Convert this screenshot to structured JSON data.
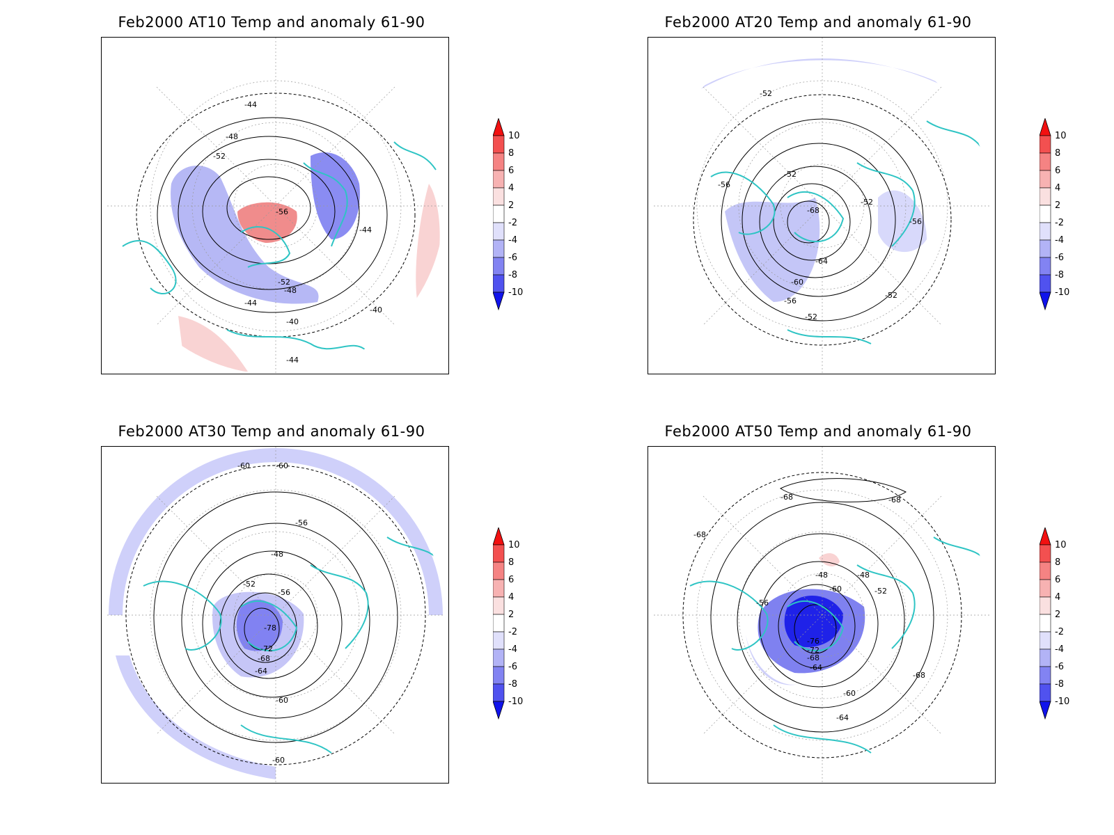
{
  "panels": [
    {
      "title": "Feb2000 AT10 Temp and anomaly 61-90",
      "contour_labels": [
        "-44",
        "-48",
        "-52",
        "-56",
        "-52",
        "-48",
        "-44",
        "-40",
        "-44",
        "-40",
        "-44"
      ],
      "anomaly_colors": [
        "#9a9cf5",
        "#f6a3a3",
        "#cfd0fa",
        "#f9d3d3"
      ]
    },
    {
      "title": "Feb2000 AT20 Temp and anomaly 61-90",
      "contour_labels": [
        "-52",
        "-56",
        "-52",
        "-68",
        "-64",
        "-60",
        "-56",
        "-52",
        "-52",
        "-56",
        "-52"
      ],
      "anomaly_colors": [
        "#cfd0fa",
        "#a7a8f2",
        "#e3e4fb"
      ]
    },
    {
      "title": "Feb2000 AT30 Temp and anomaly 61-90",
      "contour_labels": [
        "-60",
        "-60",
        "-56",
        "-48",
        "-52",
        "-56",
        "-78",
        "-72",
        "-68",
        "-64",
        "-60",
        "-60"
      ],
      "anomaly_colors": [
        "#cfd0fa",
        "#3a3cf0",
        "#a7a8f2"
      ]
    },
    {
      "title": "Feb2000 AT50 Temp and anomaly 61-90",
      "contour_labels": [
        "-68",
        "-68",
        "-68",
        "-48",
        "-48",
        "-52",
        "-60",
        "-56",
        "-76",
        "-72",
        "-68",
        "-64",
        "-60",
        "-64",
        "-68"
      ],
      "anomaly_colors": [
        "#cfd0fa",
        "#1f22e8",
        "#7f81f0",
        "#f9d3d3"
      ]
    }
  ],
  "colorbar": {
    "labels": [
      "10",
      "8",
      "6",
      "4",
      "2",
      "-2",
      "-4",
      "-6",
      "-8",
      "-10"
    ],
    "colors": [
      "#f21010",
      "#f35050",
      "#f58383",
      "#f7b2b2",
      "#fae0e0",
      "#ffffff",
      "#e0e0fb",
      "#b2b3f6",
      "#8283f2",
      "#5052ef",
      "#1013ec"
    ]
  },
  "coastline_color": "#2ec4c4"
}
